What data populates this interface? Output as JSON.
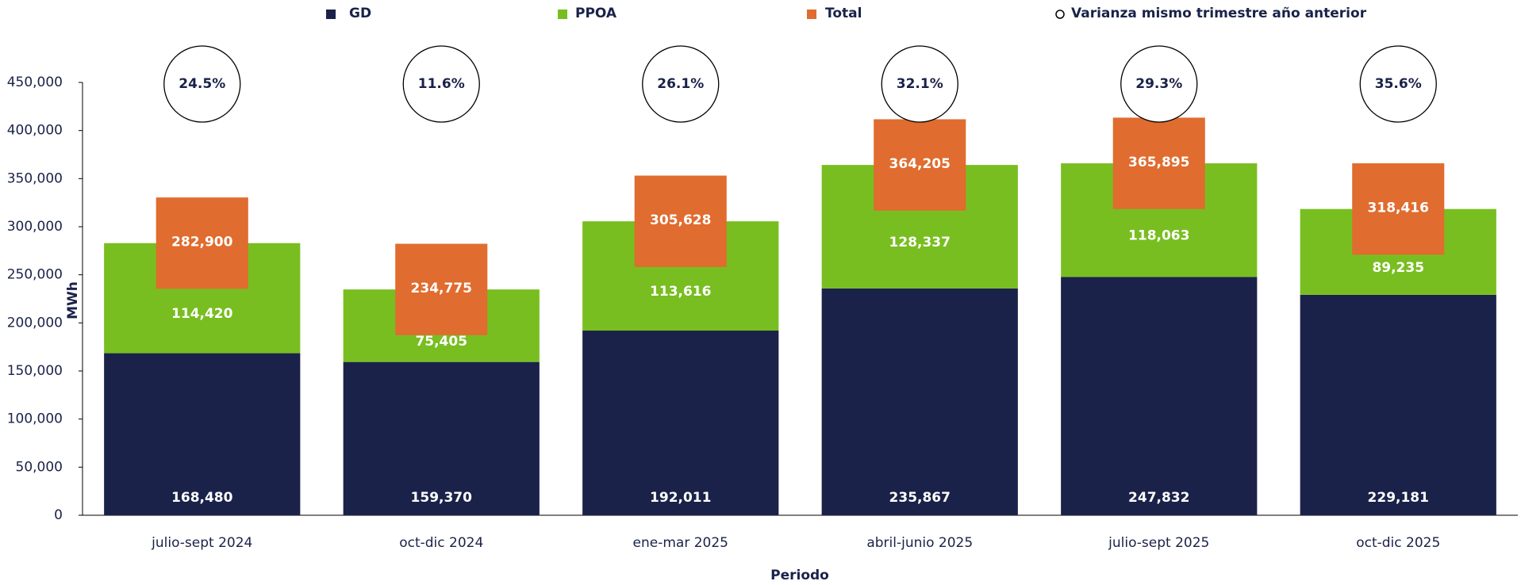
{
  "chart_data": {
    "type": "bar",
    "stacked": true,
    "x_label": "Periodo",
    "y_label": "MWh",
    "categories": [
      "julio-sept 2024",
      "oct-dic 2024",
      "ene-mar 2025",
      "abril-junio 2025",
      "julio-sept 2025",
      "oct-dic 2025"
    ],
    "series": [
      {
        "name": "GD",
        "color": "#1a2249",
        "stack": true,
        "values": [
          168480,
          159370,
          192011,
          235867,
          247832,
          229181
        ],
        "value_labels": [
          "168,480",
          "159,370",
          "192,011",
          "235,867",
          "247,832",
          "229,181"
        ]
      },
      {
        "name": "PPOA",
        "color": "#78be20",
        "stack": true,
        "values": [
          114420,
          75405,
          113616,
          128337,
          118063,
          89235
        ],
        "value_labels": [
          "114,420",
          "75,405",
          "113,616",
          "128,337",
          "118,063",
          "89,235"
        ]
      },
      {
        "name": "Total",
        "color": "#e06c2f",
        "stack": false,
        "values": [
          282900,
          234775,
          305628,
          364205,
          365895,
          318416
        ],
        "value_labels": [
          "282,900",
          "234,775",
          "305,628",
          "364,205",
          "365,895",
          "318,416"
        ]
      },
      {
        "name": "Varianza mismo trimestre año anterior",
        "marker": "circle",
        "color": "#000000",
        "values": [
          24.5,
          11.6,
          26.1,
          32.1,
          29.3,
          35.6
        ],
        "value_labels": [
          "24.5%",
          "11.6%",
          "26.1%",
          "32.1%",
          "29.3%",
          "35.6%"
        ]
      }
    ],
    "ylim": [
      0,
      450000
    ],
    "yticks": [
      0,
      {
        "value": 50000,
        "label": "50,000"
      },
      {
        "value": 100000,
        "label": "100,000"
      },
      {
        "value": 150000,
        "label": "150,000"
      },
      {
        "value": 200000,
        "label": "200,000"
      },
      {
        "value": 250000,
        "label": "250,000"
      },
      {
        "value": 300000,
        "label": "300,000"
      },
      {
        "value": 350000,
        "label": "350,000"
      },
      {
        "value": 400000,
        "label": "400,000"
      },
      {
        "value": 450000,
        "label": "450,000"
      }
    ],
    "grid": false
  }
}
